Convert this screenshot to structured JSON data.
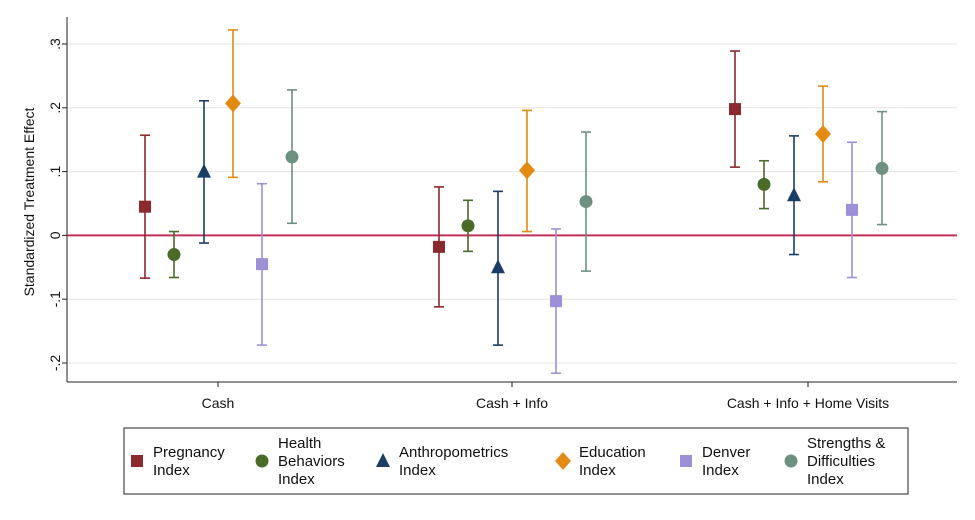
{
  "chart_data": {
    "type": "scatter",
    "title": "",
    "xlabel": "",
    "ylabel": "Standardized Treatment Effect",
    "ylim": [
      -0.22,
      0.34
    ],
    "yticks": [
      -0.2,
      -0.1,
      0,
      0.1,
      0.2,
      0.3
    ],
    "ytick_labels": [
      "-.2",
      "-.1",
      "0",
      ".1",
      ".2",
      ".3"
    ],
    "categories": [
      "Cash",
      "Cash + Info",
      "Cash + Info + Home Visits"
    ],
    "reference_line": {
      "y": 0,
      "color": "#c0305a"
    },
    "grid": true,
    "legend_position": "bottom",
    "series": [
      {
        "name": "Pregnancy Index",
        "legend_lines": [
          "Pregnancy",
          "Index"
        ],
        "marker": "square",
        "color": "#8b2a2e",
        "points": [
          {
            "y": 0.045,
            "lo": -0.067,
            "hi": 0.157
          },
          {
            "y": -0.018,
            "lo": -0.112,
            "hi": 0.076
          },
          {
            "y": 0.198,
            "lo": 0.107,
            "hi": 0.289
          }
        ]
      },
      {
        "name": "Health Behaviors Index",
        "legend_lines": [
          "Health",
          "Behaviors",
          "Index"
        ],
        "marker": "circle",
        "color": "#4a6b2a",
        "points": [
          {
            "y": -0.03,
            "lo": -0.066,
            "hi": 0.006
          },
          {
            "y": 0.015,
            "lo": -0.025,
            "hi": 0.055
          },
          {
            "y": 0.08,
            "lo": 0.042,
            "hi": 0.117
          }
        ]
      },
      {
        "name": "Anthropometrics Index",
        "legend_lines": [
          "Anthropometrics",
          "Index"
        ],
        "marker": "triangle",
        "color": "#1c3d66",
        "points": [
          {
            "y": 0.1,
            "lo": -0.012,
            "hi": 0.211
          },
          {
            "y": -0.05,
            "lo": -0.172,
            "hi": 0.069
          },
          {
            "y": 0.063,
            "lo": -0.03,
            "hi": 0.156
          }
        ]
      },
      {
        "name": "Education Index",
        "legend_lines": [
          "Education",
          "Index"
        ],
        "marker": "diamond",
        "color": "#e38a12",
        "points": [
          {
            "y": 0.207,
            "lo": 0.091,
            "hi": 0.322
          },
          {
            "y": 0.102,
            "lo": 0.006,
            "hi": 0.196
          },
          {
            "y": 0.159,
            "lo": 0.084,
            "hi": 0.234
          }
        ]
      },
      {
        "name": "Denver Index",
        "legend_lines": [
          "Denver",
          "Index"
        ],
        "marker": "square",
        "color": "#9e90d6",
        "points": [
          {
            "y": -0.045,
            "lo": -0.172,
            "hi": 0.081
          },
          {
            "y": -0.103,
            "lo": -0.216,
            "hi": 0.01
          },
          {
            "y": 0.04,
            "lo": -0.066,
            "hi": 0.146
          }
        ]
      },
      {
        "name": "Strengths & Difficulties Index",
        "legend_lines": [
          "Strengths &",
          "Difficulties",
          "Index"
        ],
        "marker": "circle",
        "color": "#6e9080",
        "points": [
          {
            "y": 0.123,
            "lo": 0.019,
            "hi": 0.228
          },
          {
            "y": 0.053,
            "lo": -0.056,
            "hi": 0.162
          },
          {
            "y": 0.105,
            "lo": 0.017,
            "hi": 0.194
          }
        ]
      }
    ]
  }
}
